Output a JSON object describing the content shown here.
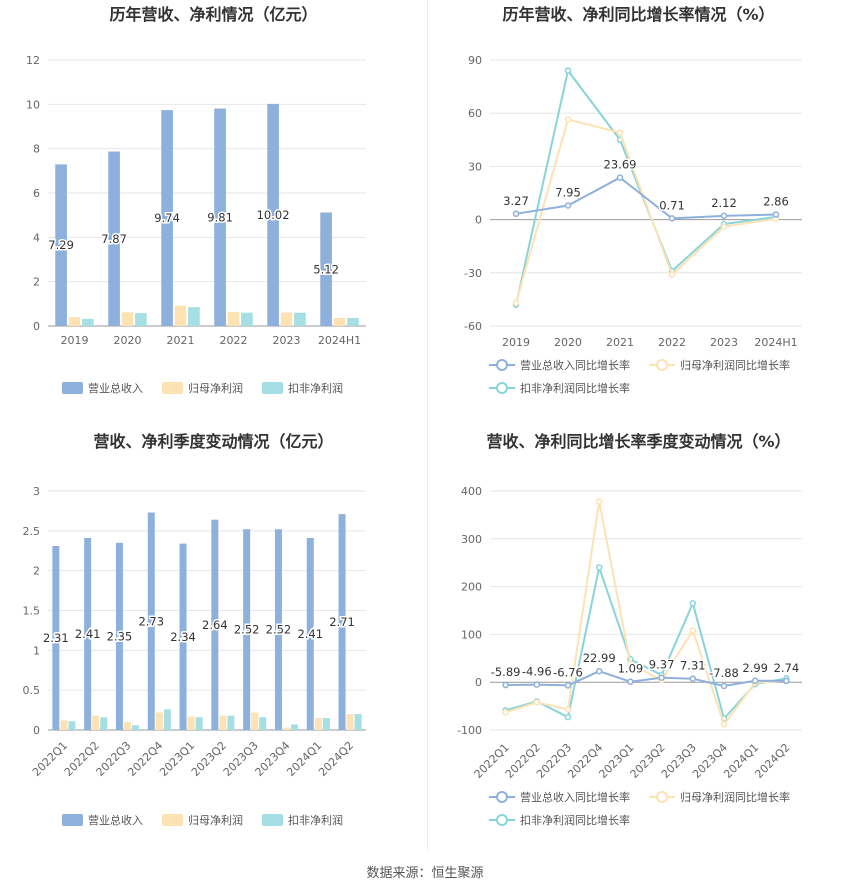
{
  "footer": {
    "source": "数据来源：恒生聚源"
  },
  "colors": {
    "revenue": "#8eb0dc",
    "net": "#fde2b4",
    "deducted": "#a6dfe3",
    "line_rev": "#8eb0dc",
    "line_net": "#fde2b4",
    "line_ded": "#89d4d9"
  },
  "chart_data": [
    {
      "id": "annual-bar",
      "type": "bar",
      "title": "历年营收、净利情况（亿元）",
      "categories": [
        "2019",
        "2020",
        "2021",
        "2022",
        "2023",
        "2024H1"
      ],
      "ylim": [
        0,
        12
      ],
      "yticks": [
        0,
        2,
        4,
        6,
        8,
        10,
        12
      ],
      "ytick_labels": [
        "0",
        "2",
        "4",
        "6",
        "8",
        "10",
        "12"
      ],
      "legend_position": "bottom",
      "series": [
        {
          "name": "营业总收入",
          "values": [
            7.29,
            7.87,
            9.74,
            9.81,
            10.02,
            5.12
          ],
          "labels": [
            "7.29",
            "7.87",
            "9.74",
            "9.81",
            "10.02",
            "5.12"
          ]
        },
        {
          "name": "归母净利润",
          "values": [
            0.4,
            0.62,
            0.92,
            0.63,
            0.61,
            0.36
          ]
        },
        {
          "name": "扣非净利润",
          "values": [
            0.32,
            0.58,
            0.85,
            0.6,
            0.6,
            0.36
          ]
        }
      ]
    },
    {
      "id": "annual-line",
      "type": "line",
      "title": "历年营收、净利同比增长率情况（%）",
      "categories": [
        "2019",
        "2020",
        "2021",
        "2022",
        "2023",
        "2024H1"
      ],
      "ylim": [
        -60,
        90
      ],
      "yticks": [
        -60,
        -30,
        0,
        30,
        60,
        90
      ],
      "ytick_labels": [
        "-60",
        "-30",
        "0",
        "30",
        "60",
        "90"
      ],
      "legend_position": "bottom",
      "series": [
        {
          "name": "营业总收入同比增长率",
          "values": [
            3.27,
            7.95,
            23.69,
            0.71,
            2.12,
            2.86
          ],
          "labels": [
            "3.27",
            "7.95",
            "23.69",
            "0.71",
            "2.12",
            "2.86"
          ]
        },
        {
          "name": "归母净利润同比增长率",
          "values": [
            -47,
            56.5,
            49,
            -31,
            -4,
            0.5
          ]
        },
        {
          "name": "扣非净利润同比增长率",
          "values": [
            -48,
            84,
            45,
            -29,
            -2.5,
            1.5
          ]
        }
      ]
    },
    {
      "id": "quarter-bar",
      "type": "bar",
      "title": "营收、净利季度变动情况（亿元）",
      "categories": [
        "2022Q1",
        "2022Q2",
        "2022Q3",
        "2022Q4",
        "2023Q1",
        "2023Q2",
        "2023Q3",
        "2023Q4",
        "2024Q1",
        "2024Q2"
      ],
      "ylim": [
        0,
        3
      ],
      "yticks": [
        0,
        0.5,
        1,
        1.5,
        2,
        2.5,
        3
      ],
      "ytick_labels": [
        "0",
        "0.5",
        "1",
        "1.5",
        "2",
        "2.5",
        "3"
      ],
      "legend_position": "bottom",
      "series": [
        {
          "name": "营业总收入",
          "values": [
            2.31,
            2.41,
            2.35,
            2.73,
            2.34,
            2.64,
            2.52,
            2.52,
            2.41,
            2.71
          ],
          "labels": [
            "2.31",
            "2.41",
            "2.35",
            "2.73",
            "2.34",
            "2.64",
            "2.52",
            "2.52",
            "2.41",
            "2.71"
          ]
        },
        {
          "name": "归母净利润",
          "values": [
            0.12,
            0.18,
            0.1,
            0.22,
            0.17,
            0.18,
            0.22,
            0.03,
            0.15,
            0.2
          ]
        },
        {
          "name": "扣非净利润",
          "values": [
            0.11,
            0.16,
            0.06,
            0.26,
            0.16,
            0.18,
            0.16,
            0.07,
            0.15,
            0.2
          ]
        }
      ]
    },
    {
      "id": "quarter-line",
      "type": "line",
      "title": "营收、净利同比增长率季度变动情况（%）",
      "categories": [
        "2022Q1",
        "2022Q2",
        "2022Q3",
        "2022Q4",
        "2023Q1",
        "2023Q2",
        "2023Q3",
        "2023Q4",
        "2024Q1",
        "2024Q2"
      ],
      "ylim": [
        -100,
        400
      ],
      "yticks": [
        -100,
        0,
        100,
        200,
        300,
        400
      ],
      "ytick_labels": [
        "-100",
        "0",
        "100",
        "200",
        "300",
        "400"
      ],
      "legend_position": "bottom",
      "series": [
        {
          "name": "营业总收入同比增长率",
          "values": [
            -5.89,
            -4.96,
            -6.76,
            22.99,
            1.09,
            9.37,
            7.31,
            -7.88,
            2.99,
            2.74
          ],
          "labels": [
            "-5.89",
            "-4.96",
            "-6.76",
            "22.99",
            "1.09",
            "9.37",
            "7.31",
            "-7.88",
            "2.99",
            "2.74"
          ]
        },
        {
          "name": "归母净利润同比增长率",
          "values": [
            -63,
            -42,
            -57,
            378,
            38,
            4,
            108,
            -88,
            -1,
            3
          ]
        },
        {
          "name": "扣非净利润同比增长率",
          "values": [
            -59,
            -40,
            -73,
            240,
            48,
            15,
            165,
            -76,
            -4,
            8
          ]
        }
      ]
    }
  ]
}
